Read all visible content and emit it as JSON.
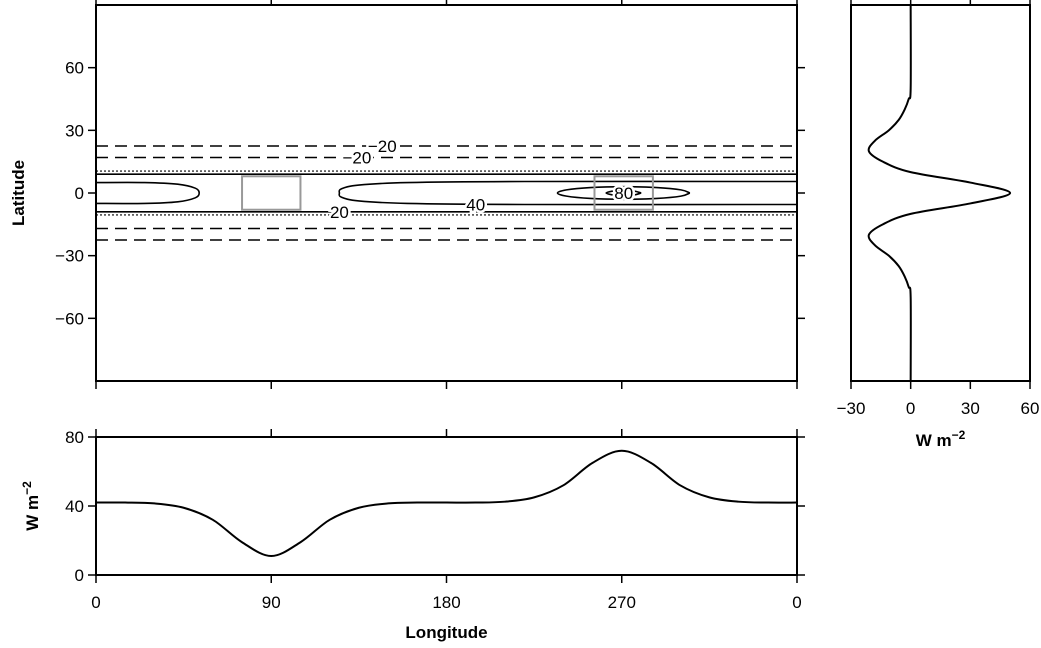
{
  "chart_data": [
    {
      "type": "contour",
      "ylabel": "Latitude",
      "xlim": [
        0,
        360
      ],
      "xticks": [
        0,
        90,
        180,
        270,
        360
      ],
      "ylim": [
        -90,
        90
      ],
      "yticks": [
        60,
        30,
        0,
        {
          "value": -30,
          "label": "−30"
        },
        {
          "value": -60,
          "label": "−60"
        }
      ],
      "contours": [
        {
          "level": -20,
          "label": "−20",
          "style": "dashed",
          "lines": [
            [
              [
                0,
                22.5
              ],
              [
                360,
                22.5
              ]
            ]
          ]
        },
        {
          "level": -20,
          "label": "−20",
          "style": "dashed",
          "lines": [
            [
              [
                0,
                17
              ],
              [
                360,
                17
              ]
            ]
          ]
        },
        {
          "level": -20,
          "style": "dashed",
          "lines": [
            [
              [
                0,
                -17
              ],
              [
                360,
                -17
              ]
            ],
            [
              [
                0,
                -22.5
              ],
              [
                360,
                -22.5
              ]
            ]
          ]
        },
        {
          "level": 0,
          "style": "dotted",
          "lines": [
            [
              [
                0,
                10.5
              ],
              [
                360,
                10.5
              ]
            ],
            [
              [
                0,
                -10.5
              ],
              [
                360,
                -10.5
              ]
            ]
          ]
        },
        {
          "level": 20,
          "label": "20",
          "style": "solid",
          "lines": [
            [
              [
                0,
                9
              ],
              [
                360,
                9
              ]
            ],
            [
              [
                0,
                -9
              ],
              [
                360,
                -9
              ]
            ]
          ]
        },
        {
          "level": 40,
          "label": "40",
          "style": "solid",
          "lines": [
            [
              [
                0,
                5
              ],
              [
                25,
                5
              ],
              [
                42,
                4.2
              ],
              [
                51,
                2.3
              ],
              [
                53,
                0
              ],
              [
                51,
                -2.3
              ],
              [
                42,
                -4.2
              ],
              [
                25,
                -5
              ],
              [
                0,
                -5
              ]
            ],
            [
              [
                360,
                5.5
              ],
              [
                220,
                5.5
              ],
              [
                160,
                5
              ],
              [
                135,
                3.8
              ],
              [
                126,
                2
              ],
              [
                125,
                0
              ],
              [
                126,
                -2
              ],
              [
                135,
                -3.8
              ],
              [
                160,
                -5
              ],
              [
                220,
                -5.5
              ],
              [
                360,
                -5.5
              ]
            ]
          ]
        },
        {
          "level": 60,
          "style": "solid",
          "lines": [
            [
              [
                305,
                0
              ],
              [
                300.4,
                1.5
              ],
              [
                288,
                2.6
              ],
              [
                271,
                3
              ],
              [
                254,
                2.6
              ],
              [
                241.6,
                1.5
              ],
              [
                237,
                0
              ],
              [
                241.6,
                -1.5
              ],
              [
                254,
                -2.6
              ],
              [
                271,
                -3
              ],
              [
                288,
                -2.6
              ],
              [
                300.4,
                -1.5
              ],
              [
                305,
                0
              ]
            ]
          ]
        },
        {
          "level": 80,
          "label": "80",
          "style": "solid",
          "lines": [
            [
              [
                280,
                0
              ],
              [
                276,
                1
              ],
              [
                271,
                1.2
              ],
              [
                266,
                1
              ],
              [
                262,
                0
              ],
              [
                266,
                -1
              ],
              [
                271,
                -1.2
              ],
              [
                276,
                -1
              ],
              [
                280,
                0
              ]
            ]
          ]
        }
      ],
      "boxes": [
        {
          "lon": [
            75,
            105
          ],
          "lat": [
            -8,
            8
          ],
          "color": "#999999"
        },
        {
          "lon": [
            256,
            286
          ],
          "lat": [
            -8,
            8
          ],
          "color": "#999999"
        }
      ]
    },
    {
      "type": "line",
      "orientation": "vertical",
      "xlabel": "W m",
      "xlabel_sup": "−2",
      "xlim": [
        -30,
        60
      ],
      "xticks": [
        {
          "value": -30,
          "label": "−30"
        },
        0,
        30,
        60
      ],
      "ylim": [
        -90,
        90
      ],
      "y": [
        -90,
        -50,
        -45,
        -40,
        -35,
        -30,
        -25,
        -20,
        -15,
        -10,
        -5,
        0,
        5,
        10,
        15,
        20,
        25,
        30,
        35,
        40,
        45,
        50,
        90
      ],
      "values": [
        0,
        0,
        -1,
        -3,
        -6,
        -11,
        -18,
        -21,
        -14,
        0,
        30,
        50,
        30,
        0,
        -14,
        -21,
        -18,
        -11,
        -6,
        -3,
        -1,
        0,
        0
      ],
      "color": "#000000"
    },
    {
      "type": "line",
      "xlabel": "Longitude",
      "ylabel": "W m",
      "ylabel_sup": "−2",
      "xlim": [
        0,
        360
      ],
      "xticks": [
        0,
        90,
        180,
        270,
        {
          "value": 360,
          "label": "0"
        }
      ],
      "ylim": [
        0,
        80
      ],
      "yticks": [
        0,
        40,
        80
      ],
      "x": [
        0,
        15,
        30,
        45,
        60,
        75,
        90,
        105,
        120,
        135,
        150,
        165,
        180,
        195,
        210,
        225,
        240,
        255,
        270,
        285,
        300,
        315,
        330,
        345,
        360
      ],
      "values": [
        42,
        42,
        41.5,
        39,
        32,
        19,
        11,
        19,
        32,
        39,
        41.5,
        42,
        42,
        42,
        42.5,
        45,
        52,
        65,
        72,
        65,
        52,
        45,
        42.5,
        42,
        42
      ],
      "color": "#000000"
    }
  ]
}
